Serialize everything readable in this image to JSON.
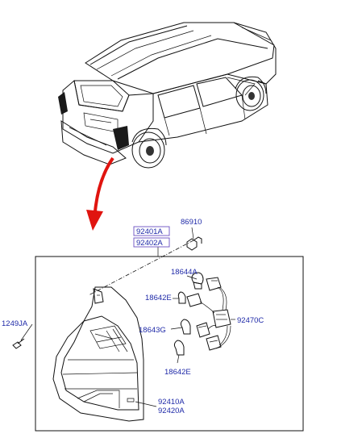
{
  "parts": {
    "p92401a": "92401A",
    "p92402a": "92402A",
    "p86910": "86910",
    "p1249ja": "1249JA",
    "p18644a": "18644A",
    "p18642e_top": "18642E",
    "p18643g": "18643G",
    "p18642e_bottom": "18642E",
    "p92470c": "92470C",
    "p92410a": "92410A",
    "p92420a": "92420A"
  },
  "colors": {
    "leader_label": "#1f2aa8",
    "boxed_label_border": "#6a4fc2",
    "arrow": "#e0140f",
    "line": "#111111"
  }
}
